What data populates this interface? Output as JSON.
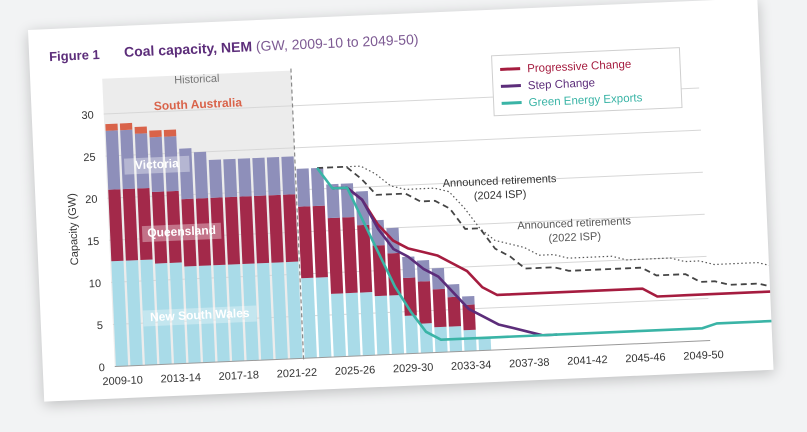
{
  "figure": {
    "label": "Figure 1",
    "title": "Coal capacity, NEM",
    "subtitle": "(GW, 2009-10 to 2049-50)"
  },
  "chart_data": {
    "type": "bar",
    "title": "Coal capacity, NEM",
    "subtitle": "(GW, 2009-10 to 2049-50)",
    "xlabel": "",
    "ylabel": "Capacity (GW)",
    "ylim": [
      0,
      33
    ],
    "yticks": [
      0,
      5,
      10,
      15,
      20,
      25,
      30
    ],
    "xtick_labels": [
      "2009-10",
      "2013-14",
      "2017-18",
      "2021-22",
      "2025-26",
      "2029-30",
      "2033-34",
      "2037-38",
      "2041-42",
      "2045-46",
      "2049-50"
    ],
    "historical_label": "Historical",
    "historical_end_index": 13,
    "categories": [
      "2009-10",
      "2010-11",
      "2011-12",
      "2012-13",
      "2013-14",
      "2014-15",
      "2015-16",
      "2016-17",
      "2017-18",
      "2018-19",
      "2019-20",
      "2020-21",
      "2021-22",
      "2022-23",
      "2023-24",
      "2024-25",
      "2025-26",
      "2026-27",
      "2027-28",
      "2028-29",
      "2029-30",
      "2030-31",
      "2031-32",
      "2032-33",
      "2033-34",
      "2034-35"
    ],
    "stack_series": [
      {
        "name": "New South Wales",
        "color": "#a9dbe8",
        "values": [
          12.5,
          12.5,
          12.5,
          12,
          12,
          11.5,
          11.5,
          11.5,
          11.5,
          11.5,
          11.5,
          11.5,
          11.5,
          9.5,
          9.5,
          7.5,
          7.5,
          7.5,
          7,
          7,
          4.5,
          3.5,
          3,
          3,
          2.5,
          1.5
        ]
      },
      {
        "name": "Queensland",
        "color": "#a3294a",
        "values": [
          8.5,
          8.5,
          8.5,
          8.5,
          8.5,
          8,
          8,
          8,
          8,
          8,
          8,
          8,
          8,
          8.5,
          8.5,
          9,
          9,
          8,
          6,
          5,
          4.5,
          5,
          4.5,
          3.5,
          3,
          0
        ]
      },
      {
        "name": "Victoria",
        "color": "#8e8fba",
        "values": [
          7,
          7,
          6.5,
          6.5,
          6.5,
          6,
          5.5,
          4.5,
          4.5,
          4.5,
          4.5,
          4.5,
          4.5,
          4.5,
          4.5,
          4,
          4,
          4,
          3,
          3,
          2.5,
          2.5,
          2.5,
          1.5,
          1,
          0
        ]
      },
      {
        "name": "South Australia",
        "color": "#d9634a",
        "values": [
          0.8,
          0.8,
          0.8,
          0.8,
          0.8,
          0,
          0,
          0,
          0,
          0,
          0,
          0,
          0,
          0,
          0,
          0,
          0,
          0,
          0,
          0,
          0,
          0,
          0,
          0,
          0,
          0
        ]
      }
    ],
    "region_labels": [
      "South Australia",
      "Victoria",
      "Queensland",
      "New South Wales"
    ],
    "line_series": [
      {
        "name": "Progressive Change",
        "color": "#a51c3f",
        "x": [
          15,
          16,
          17,
          18,
          19,
          20,
          21,
          22,
          23,
          24,
          25,
          26,
          27,
          28,
          29,
          30,
          31,
          32,
          33,
          34,
          35,
          36,
          37,
          38,
          39,
          40,
          41,
          42,
          43,
          44,
          45,
          46,
          47,
          48,
          49,
          50
        ],
        "y": [
          20,
          20,
          18.5,
          15.5,
          13.5,
          12.5,
          12,
          11.5,
          10.5,
          9.5,
          7.5,
          6.5,
          6.5,
          6.5,
          6.5,
          6.5,
          6.5,
          6.5,
          6.5,
          6.5,
          6.5,
          6.5,
          5.5,
          5.5,
          5.5,
          5.5,
          5.5,
          5.5,
          5.5,
          5.5,
          5.5,
          5.5,
          5.5,
          5,
          5,
          5
        ]
      },
      {
        "name": "Step Change",
        "color": "#5c2d7a",
        "x": [
          15,
          16,
          17,
          18,
          19,
          20,
          21,
          22,
          23,
          24,
          25,
          26,
          27,
          28,
          29,
          30
        ],
        "y": [
          20,
          20,
          18.5,
          15,
          12.5,
          11.5,
          10,
          9,
          7,
          5,
          4,
          3,
          2.5,
          2,
          1.5,
          1.5
        ]
      },
      {
        "name": "Green Energy Exports",
        "color": "#3ab4a6",
        "x": [
          14,
          15,
          16,
          17,
          18,
          19,
          20,
          21,
          22,
          23,
          24,
          25,
          26,
          27,
          28,
          29,
          30,
          31,
          32,
          33,
          34,
          35,
          36,
          37,
          38,
          39,
          40,
          41,
          42,
          43,
          44,
          45,
          46,
          47,
          48,
          49,
          50
        ],
        "y": [
          22.5,
          20,
          20,
          16,
          12,
          8,
          5,
          2.5,
          1.5,
          1.5,
          1.5,
          1.5,
          1.5,
          1.5,
          1.5,
          1.5,
          1.5,
          1.5,
          1.5,
          1.5,
          1.5,
          1.5,
          1.5,
          1.5,
          1.5,
          1.5,
          1.5,
          2,
          2,
          2,
          2,
          2,
          2,
          2,
          2,
          2,
          2
        ]
      }
    ],
    "retirement_lines": [
      {
        "name": "Announced retirements (2024 ISP)",
        "label_lines": [
          "Announced retirements",
          "(2024 ISP)"
        ],
        "style": "dashed",
        "color": "#444444",
        "x": [
          14,
          15,
          16,
          17,
          18,
          19,
          20,
          21,
          22,
          23,
          24,
          25,
          26,
          27,
          28,
          29,
          30,
          31,
          32,
          33,
          34,
          35,
          36,
          37,
          38,
          39,
          40,
          41,
          42,
          43,
          44,
          45,
          46,
          47,
          48,
          49,
          50
        ],
        "y": [
          22.5,
          22.5,
          22.5,
          21,
          19,
          19,
          19,
          18,
          18,
          17,
          14.5,
          14.5,
          12,
          11,
          9.5,
          9.5,
          9.5,
          9,
          9,
          9,
          9,
          9,
          9,
          8,
          8,
          8,
          7,
          7,
          6.5,
          6.5,
          6.5,
          6,
          5.5,
          5,
          5,
          5,
          5
        ]
      },
      {
        "name": "Announced retirements (2022 ISP)",
        "label_lines": [
          "Announced retirements",
          "(2022 ISP)"
        ],
        "style": "dotted",
        "color": "#555555",
        "x": [
          16,
          17,
          18,
          19,
          20,
          21,
          22,
          23,
          24,
          25,
          26,
          27,
          28,
          29,
          30,
          31,
          32,
          33,
          34,
          35,
          36,
          37,
          38,
          39,
          40,
          41,
          42,
          43,
          44,
          45,
          46,
          47,
          48,
          49,
          50
        ],
        "y": [
          22.5,
          22.5,
          21.5,
          20,
          19.5,
          19.5,
          19.5,
          19,
          17,
          14.5,
          13,
          12.5,
          12,
          11,
          11,
          10.5,
          10.5,
          10.5,
          10.5,
          10,
          10,
          10,
          10,
          9.5,
          9.5,
          9,
          9,
          9,
          9,
          8.5,
          7,
          6,
          5.5,
          5,
          5
        ]
      }
    ],
    "legend": [
      "Progressive Change",
      "Step Change",
      "Green Energy Exports"
    ],
    "legend_position": "top-right",
    "grid": true
  }
}
